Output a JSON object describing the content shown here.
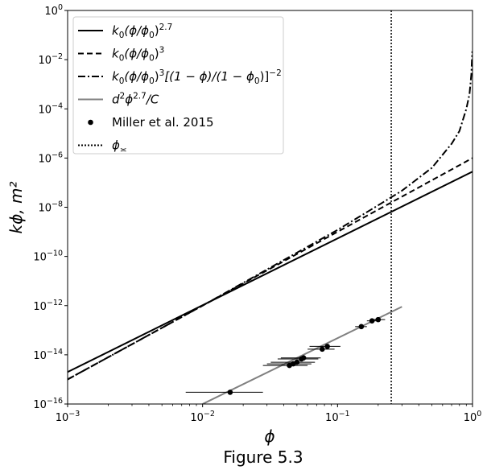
{
  "chart_data": {
    "type": "line",
    "caption": "Figure 5.3",
    "xlabel": "ϕ",
    "ylabel": "kϕ, m²",
    "x_scale": "log",
    "y_scale": "log",
    "xlim": [
      0.001,
      1
    ],
    "ylim": [
      1e-16,
      1
    ],
    "grid": false,
    "legend_placement": "top-left",
    "x_ticks": [
      {
        "value": 0.001,
        "base": "10",
        "exp": "−3"
      },
      {
        "value": 0.01,
        "base": "10",
        "exp": "−2"
      },
      {
        "value": 0.1,
        "base": "10",
        "exp": "−1"
      },
      {
        "value": 1,
        "base": "10",
        "exp": "0"
      }
    ],
    "y_ticks": [
      {
        "value": 1e-16,
        "base": "10",
        "exp": "−16"
      },
      {
        "value": 1e-14,
        "base": "10",
        "exp": "−14"
      },
      {
        "value": 1e-12,
        "base": "10",
        "exp": "−12"
      },
      {
        "value": 1e-10,
        "base": "10",
        "exp": "−10"
      },
      {
        "value": 1e-08,
        "base": "10",
        "exp": "−8"
      },
      {
        "value": 1e-06,
        "base": "10",
        "exp": "−6"
      },
      {
        "value": 0.0001,
        "base": "10",
        "exp": "−4"
      },
      {
        "value": 0.01,
        "base": "10",
        "exp": "−2"
      },
      {
        "value": 1,
        "base": "10",
        "exp": "0"
      }
    ],
    "series": [
      {
        "name": "k0(ϕ/ϕ0)^2.7",
        "style": "solid",
        "color": "#000000",
        "x": [
          0.001,
          1
        ],
        "y": [
          2e-15,
          2.8e-07
        ]
      },
      {
        "name": "k0(ϕ/ϕ0)^3",
        "style": "dashed",
        "color": "#000000",
        "x": [
          0.001,
          1
        ],
        "y": [
          1e-15,
          1e-06
        ]
      },
      {
        "name": "k0(ϕ/ϕ0)^3[(1−ϕ)/(1−ϕ0)]^−2",
        "style": "dashdot",
        "color": "#000000",
        "x": [
          0.001,
          0.01,
          0.1,
          0.2,
          0.3,
          0.5,
          0.7,
          0.8,
          0.9,
          0.95,
          0.98,
          0.99,
          0.995,
          1
        ],
        "y": [
          1e-15,
          1e-12,
          1.2e-09,
          1.2e-08,
          4.7e-08,
          4e-07,
          3.8e-06,
          1.25e-05,
          0.0001,
          0.0004,
          0.0025,
          0.01,
          0.02,
          0.02
        ]
      },
      {
        "name": "d²ϕ^2.7/C",
        "style": "solid",
        "color": "#808080",
        "x": [
          0.01,
          0.3
        ],
        "y": [
          1e-16,
          9e-13
        ]
      },
      {
        "name": "Miller et al. 2015",
        "style": "points",
        "color": "#000000",
        "points": [
          {
            "x": 0.016,
            "y": 3e-16,
            "xerr": [
              0.0075,
              0.028
            ]
          },
          {
            "x": 0.044,
            "y": 3.7e-15,
            "xerr": [
              0.028,
              0.06
            ]
          },
          {
            "x": 0.047,
            "y": 4.3e-15,
            "xerr": [
              0.03,
              0.064
            ]
          },
          {
            "x": 0.05,
            "y": 5e-15,
            "xerr": [
              0.032,
              0.068
            ]
          },
          {
            "x": 0.054,
            "y": 6.8e-15,
            "xerr": [
              0.036,
              0.072
            ]
          },
          {
            "x": 0.056,
            "y": 7.5e-15,
            "xerr": [
              0.038,
              0.075
            ]
          },
          {
            "x": 0.077,
            "y": 1.7e-14,
            "xerr": [
              0.06,
              0.095
            ]
          },
          {
            "x": 0.084,
            "y": 2.2e-14,
            "xerr": [
              0.062,
              0.105
            ]
          },
          {
            "x": 0.15,
            "y": 1.4e-13,
            "xerr": [
              0.135,
              0.165
            ]
          },
          {
            "x": 0.18,
            "y": 2.4e-13,
            "xerr": [
              0.165,
              0.2
            ]
          },
          {
            "x": 0.2,
            "y": 2.7e-13,
            "xerr": [
              0.18,
              0.225
            ]
          }
        ]
      },
      {
        "name": "ϕ≍",
        "style": "dotted-vertical",
        "color": "#000000",
        "x": 0.25
      }
    ]
  }
}
